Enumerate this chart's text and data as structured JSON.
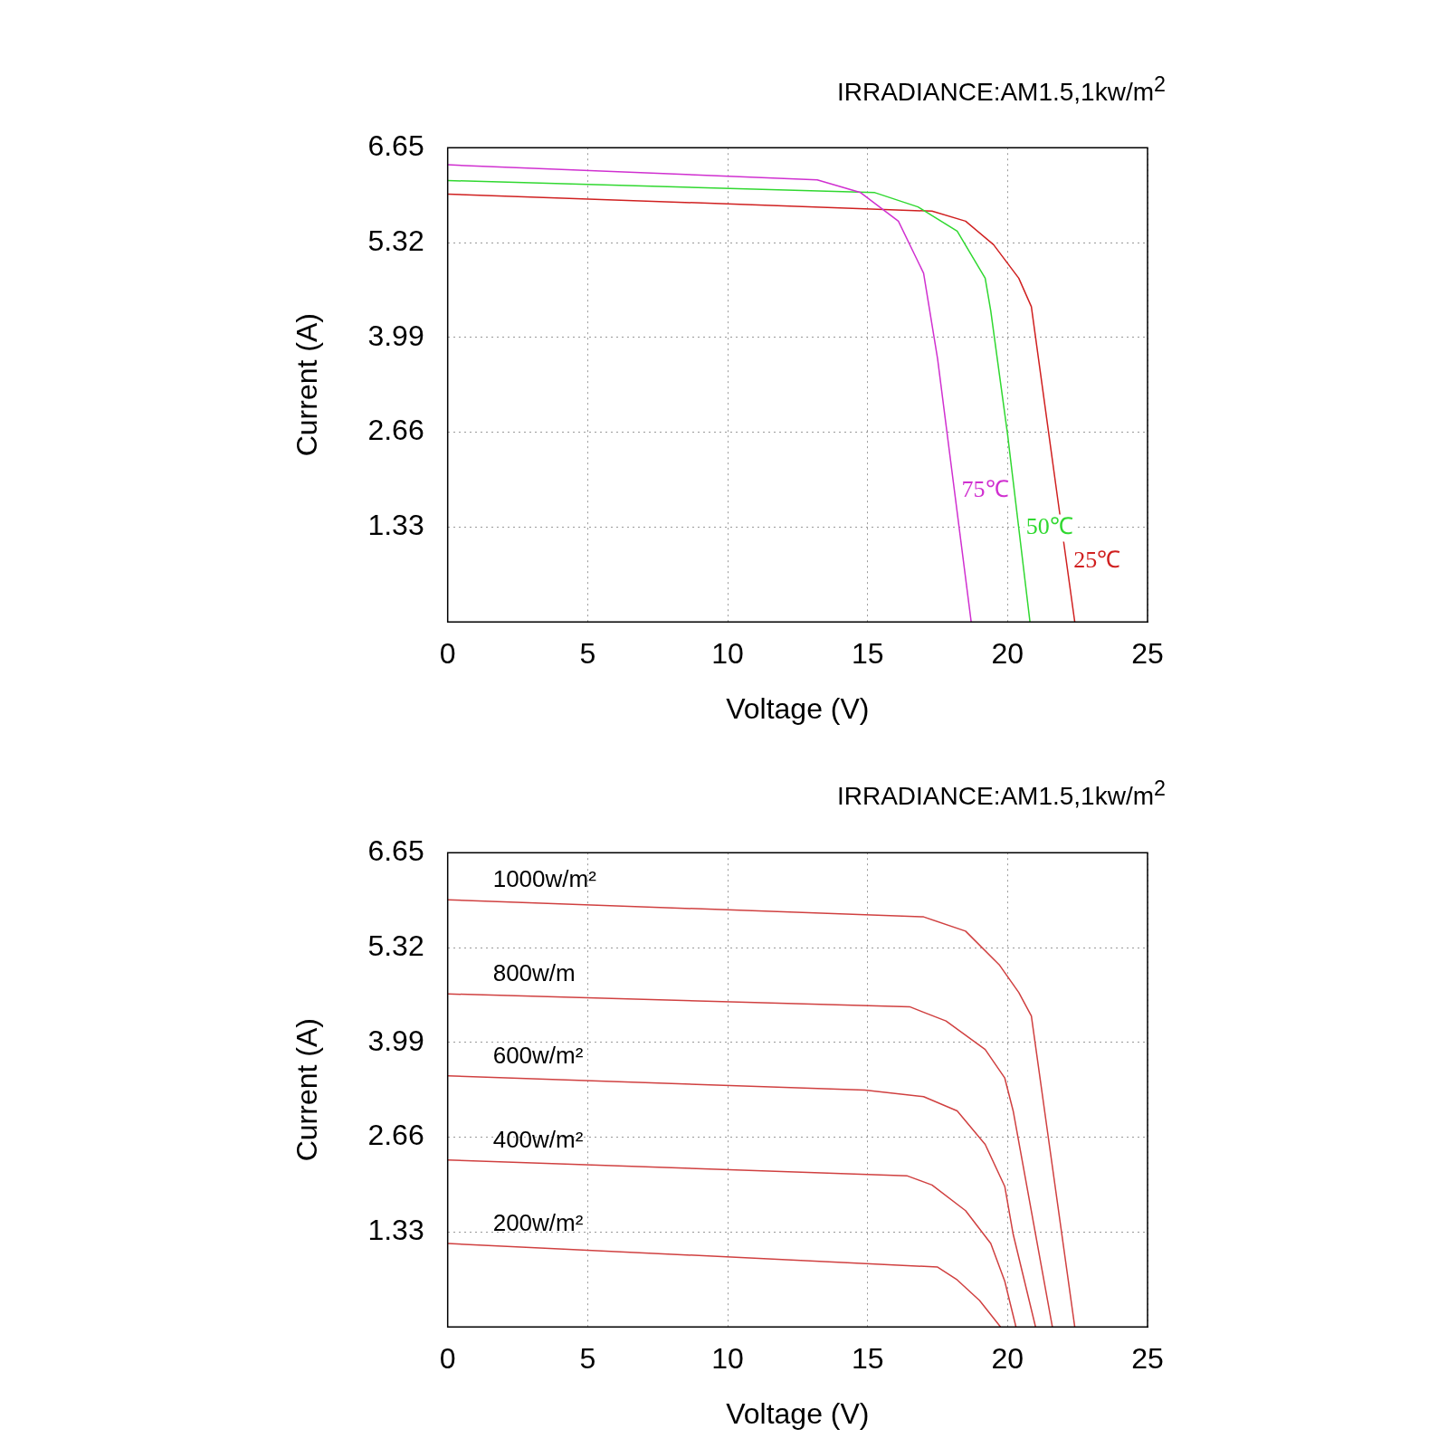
{
  "chart_data": [
    {
      "type": "line",
      "title": "IRRADIANCE:AM1.5,1kw/m$^{2}$",
      "xlabel": "Voltage (V)",
      "ylabel": "Current (A)",
      "xlim": [
        0,
        25
      ],
      "xticks": [
        0,
        5,
        10,
        15,
        20,
        25
      ],
      "ylim": [
        0,
        6.65
      ],
      "yticks": [
        1.33,
        2.66,
        3.99,
        5.32,
        6.65
      ],
      "grid": true,
      "legend": false,
      "marker": "none",
      "line_style": "solid",
      "series": [
        {
          "name": "75℃",
          "color": "#d030d0",
          "x": [
            0,
            13.2,
            14.75,
            16.1,
            17.0,
            17.5,
            18.7
          ],
          "values": [
            6.41,
            6.2,
            6.02,
            5.62,
            4.89,
            3.69,
            0
          ]
        },
        {
          "name": "50℃",
          "color": "#30d830",
          "x": [
            0,
            15.26,
            16.8,
            18.2,
            19.2,
            19.4,
            20.0,
            20.8
          ],
          "values": [
            6.19,
            6.02,
            5.82,
            5.48,
            4.82,
            4.36,
            2.63,
            0
          ]
        },
        {
          "name": "25℃",
          "color": "#d02020",
          "x": [
            0,
            17.3,
            18.5,
            19.5,
            20.4,
            20.85,
            21.8,
            22.4
          ],
          "values": [
            6.0,
            5.76,
            5.62,
            5.29,
            4.82,
            4.42,
            1.7,
            0
          ]
        }
      ]
    },
    {
      "type": "line",
      "title": "IRRADIANCE:AM1.5,1kw/m$^{2}$",
      "xlabel": "Voltage (V)",
      "ylabel": "Current (A)",
      "xlim": [
        0,
        25
      ],
      "xticks": [
        0,
        5,
        10,
        15,
        20,
        25
      ],
      "ylim": [
        0,
        6.65
      ],
      "yticks": [
        1.33,
        2.66,
        3.99,
        5.32,
        6.65
      ],
      "grid": true,
      "legend": false,
      "marker": "none",
      "line_style": "solid",
      "series": [
        {
          "name": "1000w/m²",
          "color": "#d04040",
          "x": [
            0,
            17.0,
            18.5,
            19.7,
            20.4,
            20.85,
            22.4
          ],
          "values": [
            5.99,
            5.75,
            5.55,
            5.08,
            4.69,
            4.36,
            0
          ]
        },
        {
          "name": "800w/m",
          "color": "#d04040",
          "x": [
            0,
            16.5,
            17.8,
            19.2,
            19.9,
            20.2,
            21.6
          ],
          "values": [
            4.67,
            4.49,
            4.29,
            3.89,
            3.49,
            3.03,
            0
          ]
        },
        {
          "name": "600w/m²",
          "color": "#d04040",
          "x": [
            0,
            14.9,
            17.0,
            18.2,
            19.2,
            19.9,
            20.2,
            21.0
          ],
          "values": [
            3.52,
            3.32,
            3.23,
            3.03,
            2.56,
            1.97,
            1.3,
            0
          ]
        },
        {
          "name": "400w/m²",
          "color": "#d04040",
          "x": [
            0,
            16.4,
            17.3,
            18.5,
            19.4,
            19.9,
            20.3
          ],
          "values": [
            2.34,
            2.12,
            1.99,
            1.63,
            1.17,
            0.64,
            0
          ]
        },
        {
          "name": "200w/m²",
          "color": "#d04040",
          "x": [
            0,
            17.5,
            18.2,
            19.0,
            19.75
          ],
          "values": [
            1.17,
            0.84,
            0.66,
            0.37,
            0
          ]
        }
      ]
    }
  ]
}
